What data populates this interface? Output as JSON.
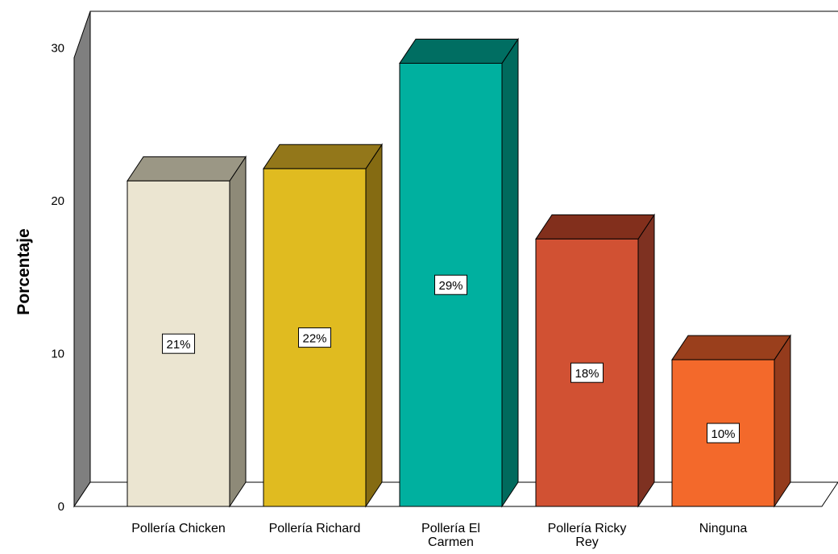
{
  "chart_data": {
    "type": "bar",
    "title": "",
    "xlabel": "",
    "ylabel": "Porcentaje",
    "ylim": [
      0,
      30
    ],
    "yticks": [
      "0",
      "10",
      "20",
      "30"
    ],
    "grid": false,
    "legend": "none",
    "style": "3d",
    "categories": [
      [
        "Pollería Chicken"
      ],
      [
        "Pollería Richard"
      ],
      [
        "Pollería El",
        "Carmen"
      ],
      [
        "Pollería Ricky",
        "Rey"
      ],
      [
        "Ninguna"
      ]
    ],
    "values": [
      21.3,
      22.1,
      29.0,
      17.5,
      9.6
    ],
    "data_labels": [
      "21%",
      "22%",
      "29%",
      "18%",
      "10%"
    ],
    "colors": [
      {
        "front": "#ebe5d1",
        "top": "#9b9785",
        "side": "#8e8a78"
      },
      {
        "front": "#e0bb20",
        "top": "#93771a",
        "side": "#856b12"
      },
      {
        "front": "#00b09f",
        "top": "#006e62",
        "side": "#006a5d"
      },
      {
        "front": "#d15133",
        "top": "#822f1c",
        "side": "#7e3121"
      },
      {
        "front": "#f3692b",
        "top": "#9a3f1c",
        "side": "#943b1c"
      }
    ],
    "wall_color": "#7f7f7f"
  }
}
